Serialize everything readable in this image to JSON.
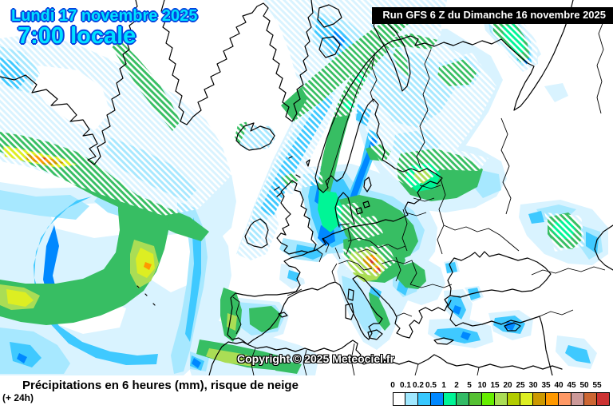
{
  "header": {
    "date_line": "Lundi 17 novembre 2025",
    "time_line": "7:00 locale",
    "run_info": "Run GFS 6 Z du Dimanche 16 novembre 2025"
  },
  "map": {
    "copyright": "Copyright © 2025 Meteociel.fr"
  },
  "footer": {
    "title": "Précipitations en 6 heures (mm), risque de neige",
    "subtitle": "(+ 24h)"
  },
  "legend": {
    "stops": [
      {
        "label": "0",
        "color": "#FFFFFF"
      },
      {
        "label": "0.1",
        "color": "#A0E8FF"
      },
      {
        "label": "0.2",
        "color": "#38C8FF"
      },
      {
        "label": "0.5",
        "color": "#0088FF"
      },
      {
        "label": "1",
        "color": "#00F596"
      },
      {
        "label": "2",
        "color": "#33BB66"
      },
      {
        "label": "5",
        "color": "#55C033"
      },
      {
        "label": "10",
        "color": "#66EE00"
      },
      {
        "label": "15",
        "color": "#AADD55"
      },
      {
        "label": "20",
        "color": "#B2CC00"
      },
      {
        "label": "25",
        "color": "#DDEE22"
      },
      {
        "label": "30",
        "color": "#CC9900"
      },
      {
        "label": "35",
        "color": "#FF9900"
      },
      {
        "label": "40",
        "color": "#FF9966"
      },
      {
        "label": "45",
        "color": "#CC9999"
      },
      {
        "label": "50",
        "color": "#CC6633"
      },
      {
        "label": "55",
        "color": "#CC3333"
      }
    ]
  },
  "colors": {
    "title_text": "#00E2FF",
    "title_outline": "#0544E0",
    "run_box_bg": "#000000",
    "run_box_fg": "#FFFFFF"
  }
}
